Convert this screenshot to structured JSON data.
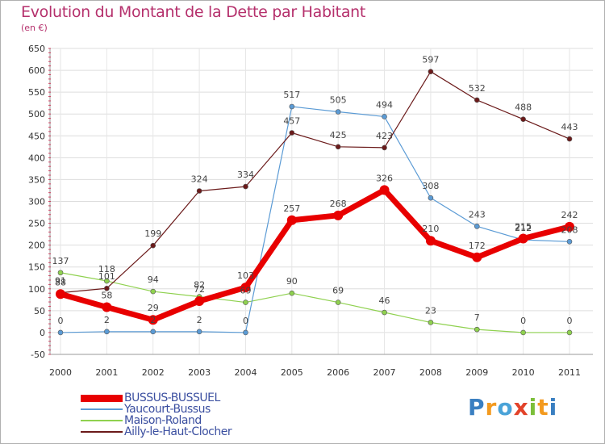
{
  "title": "Evolution du Montant de la Dette par Habitant",
  "subtitle": "(en €)",
  "logo": "Proxiti",
  "chart_data": {
    "type": "line",
    "categories": [
      "2000",
      "2001",
      "2002",
      "2003",
      "2004",
      "2005",
      "2006",
      "2007",
      "2008",
      "2009",
      "2010",
      "2011"
    ],
    "ylim": [
      -50,
      650
    ],
    "yticks": [
      -50,
      0,
      50,
      100,
      150,
      200,
      250,
      300,
      350,
      400,
      450,
      500,
      550,
      600,
      650
    ],
    "grid": true,
    "legend": "bottom-left",
    "series": [
      {
        "name": "BUSSUS-BUSSUEL",
        "color": "#e80000",
        "values": [
          88,
          58,
          29,
          72,
          103,
          257,
          268,
          326,
          210,
          172,
          215,
          242
        ]
      },
      {
        "name": "Yaucourt-Bussus",
        "color": "#5b9bd5",
        "values": [
          0,
          2,
          2,
          2,
          0,
          517,
          505,
          494,
          308,
          243,
          212,
          208
        ]
      },
      {
        "name": "Maison-Roland",
        "color": "#8fd14f",
        "values": [
          137,
          118,
          94,
          82,
          69,
          90,
          69,
          46,
          23,
          7,
          0,
          0
        ]
      },
      {
        "name": "Ailly-le-Haut-Clocher",
        "color": "#6b1a1a",
        "values": [
          91,
          101,
          199,
          324,
          334,
          457,
          425,
          423,
          597,
          532,
          488,
          443
        ]
      }
    ]
  }
}
